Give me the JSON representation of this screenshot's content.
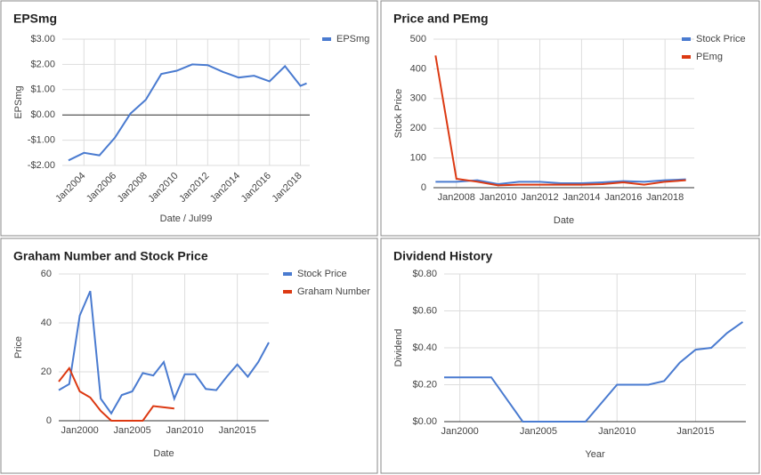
{
  "chart_data": [
    {
      "type": "line",
      "title": "EPSmg",
      "xlabel": "Date / Jul99",
      "ylabel": "EPSmg",
      "x": [
        2003,
        2004,
        2005,
        2006,
        2007,
        2008,
        2009,
        2010,
        2011,
        2012,
        2013,
        2014,
        2015,
        2016,
        2017,
        2018,
        2018.4
      ],
      "xlim": [
        2002.6,
        2018.6
      ],
      "xticks": [
        {
          "value": 2004,
          "label": "Jan2004"
        },
        {
          "value": 2006,
          "label": "Jan2006"
        },
        {
          "value": 2008,
          "label": "Jan2008"
        },
        {
          "value": 2010,
          "label": "Jan2010"
        },
        {
          "value": 2012,
          "label": "Jan2012"
        },
        {
          "value": 2014,
          "label": "Jan2014"
        },
        {
          "value": 2016,
          "label": "Jan2016"
        },
        {
          "value": 2018,
          "label": "Jan2018"
        }
      ],
      "xtick_rotation": -45,
      "ylim": [
        -2,
        3
      ],
      "yticks": [
        {
          "value": -2,
          "label": "-$2.00"
        },
        {
          "value": -1,
          "label": "-$1.00"
        },
        {
          "value": 0,
          "label": "$0.00"
        },
        {
          "value": 1,
          "label": "$1.00"
        },
        {
          "value": 2,
          "label": "$2.00"
        },
        {
          "value": 3,
          "label": "$3.00"
        }
      ],
      "zero_line": true,
      "grid": true,
      "legend": "right",
      "series": [
        {
          "name": "EPSmg",
          "color": "#4a7bd0",
          "values": [
            -1.8,
            -1.5,
            -1.6,
            -0.9,
            0.05,
            0.6,
            1.62,
            1.75,
            2.0,
            1.97,
            1.7,
            1.48,
            1.55,
            1.33,
            1.93,
            1.15,
            1.25
          ]
        }
      ]
    },
    {
      "type": "line",
      "title": "Price and PEmg",
      "xlabel": "Date",
      "ylabel": "Stock Price",
      "x": [
        2007,
        2008,
        2009,
        2010,
        2011,
        2012,
        2013,
        2014,
        2015,
        2016,
        2017,
        2018,
        2019
      ],
      "xlim": [
        2006.9,
        2019.4
      ],
      "xticks": [
        {
          "value": 2008,
          "label": "Jan2008"
        },
        {
          "value": 2010,
          "label": "Jan2010"
        },
        {
          "value": 2012,
          "label": "Jan2012"
        },
        {
          "value": 2014,
          "label": "Jan2014"
        },
        {
          "value": 2016,
          "label": "Jan2016"
        },
        {
          "value": 2018,
          "label": "Jan2018"
        }
      ],
      "ylim": [
        0,
        500
      ],
      "yticks": [
        0,
        100,
        200,
        300,
        400,
        500
      ],
      "grid": true,
      "legend": "right",
      "series": [
        {
          "name": "Stock Price",
          "color": "#4a7bd0",
          "values": [
            20,
            20,
            25,
            12,
            20,
            20,
            15,
            15,
            18,
            22,
            20,
            25,
            28
          ]
        },
        {
          "name": "PEmg",
          "color": "#dc3912",
          "values": [
            445,
            30,
            20,
            8,
            10,
            10,
            10,
            10,
            12,
            18,
            10,
            20,
            25
          ]
        }
      ]
    },
    {
      "type": "line",
      "title": "Graham Number and Stock Price",
      "xlabel": "Date",
      "ylabel": "Price",
      "x": [
        1998,
        1999,
        2000,
        2001,
        2002,
        2003,
        2004,
        2005,
        2006,
        2007,
        2008,
        2009,
        2010,
        2011,
        2012,
        2013,
        2014,
        2015,
        2016,
        2017,
        2018
      ],
      "xlim": [
        1998,
        2018
      ],
      "xticks": [
        {
          "value": 2000,
          "label": "Jan2000"
        },
        {
          "value": 2005,
          "label": "Jan2005"
        },
        {
          "value": 2010,
          "label": "Jan2010"
        },
        {
          "value": 2015,
          "label": "Jan2015"
        }
      ],
      "ylim": [
        0,
        60
      ],
      "yticks": [
        0,
        20,
        40,
        60
      ],
      "grid": true,
      "legend": "right",
      "series": [
        {
          "name": "Stock Price",
          "color": "#4a7bd0",
          "values": [
            12.5,
            15,
            43,
            53,
            9,
            3,
            10.5,
            12,
            19.5,
            18.5,
            24,
            9,
            19,
            19,
            13,
            12.5,
            18,
            23,
            18,
            24,
            32
          ]
        },
        {
          "name": "Graham Number",
          "color": "#dc3912",
          "values": [
            16,
            21.5,
            12,
            9.5,
            4,
            0,
            0,
            0,
            0,
            6,
            5.5,
            5,
            null,
            null,
            null,
            null,
            null,
            null,
            null,
            null,
            null
          ]
        }
      ]
    },
    {
      "type": "line",
      "title": "Dividend History",
      "xlabel": "Year",
      "ylabel": "Dividend",
      "x": [
        1999,
        2000,
        2001,
        2002,
        2004,
        2005,
        2006,
        2007,
        2008,
        2010,
        2011,
        2012,
        2013,
        2014,
        2015,
        2016,
        2017,
        2018
      ],
      "xlim": [
        1999,
        2018.2
      ],
      "xticks": [
        {
          "value": 2000,
          "label": "Jan2000"
        },
        {
          "value": 2005,
          "label": "Jan2005"
        },
        {
          "value": 2010,
          "label": "Jan2010"
        },
        {
          "value": 2015,
          "label": "Jan2015"
        }
      ],
      "ylim": [
        0,
        0.8
      ],
      "yticks": [
        {
          "value": 0,
          "label": "$0.00"
        },
        {
          "value": 0.2,
          "label": "$0.20"
        },
        {
          "value": 0.4,
          "label": "$0.40"
        },
        {
          "value": 0.6,
          "label": "$0.60"
        },
        {
          "value": 0.8,
          "label": "$0.80"
        }
      ],
      "grid": true,
      "series": [
        {
          "color": "#4a7bd0",
          "values": [
            0.24,
            0.24,
            0.24,
            0.24,
            0,
            0,
            0,
            0,
            0,
            0.2,
            0.2,
            0.2,
            0.22,
            0.32,
            0.39,
            0.4,
            0.48,
            0.54
          ]
        }
      ]
    }
  ]
}
